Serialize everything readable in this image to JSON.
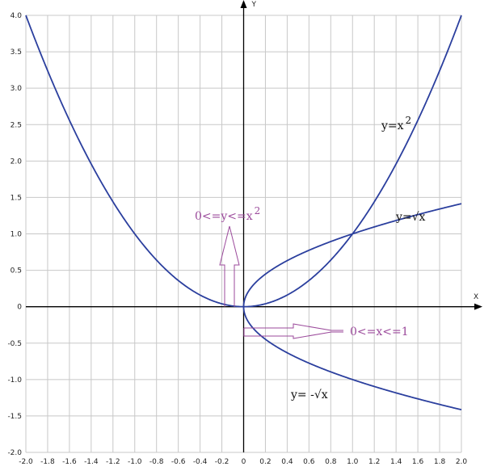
{
  "chart_data": {
    "type": "line",
    "title": "",
    "xlabel": "X",
    "ylabel": "Y",
    "xlim": [
      -2,
      2
    ],
    "ylim": [
      -2,
      4
    ],
    "grid": true,
    "x_ticks": [
      "-2.0",
      "-1.8",
      "-1.6",
      "-1.4",
      "-1.2",
      "-1.0",
      "-0.8",
      "-0.6",
      "-0.4",
      "-0.2",
      "0",
      "0.2",
      "0.4",
      "0.6",
      "0.8",
      "1.0",
      "1.2",
      "1.4",
      "1.6",
      "1.8",
      "2.0"
    ],
    "y_ticks": [
      "-2.0",
      "-1.5",
      "-1.0",
      "-0.5",
      "0",
      "0.5",
      "1.0",
      "1.5",
      "2.0",
      "2.5",
      "3.0",
      "3.5",
      "4.0"
    ],
    "series": [
      {
        "name": "y=x^2",
        "label": "y=x",
        "label_sup": "2",
        "function": "x^2",
        "domain": [
          -2,
          2
        ],
        "color": "#2b3f9e"
      },
      {
        "name": "y=sqrt(x)",
        "label": "y=√x",
        "function": "sqrt(x)",
        "domain": [
          0,
          2
        ],
        "color": "#2b3f9e"
      },
      {
        "name": "y=-sqrt(x)",
        "label": "y= -√x",
        "function": "-sqrt(x)",
        "domain": [
          0,
          2
        ],
        "color": "#2b3f9e"
      }
    ],
    "annotations": [
      {
        "text": "0<=y<=x",
        "sup": "2",
        "type": "up-arrow",
        "color": "#9b4a9b"
      },
      {
        "text": "0<=x<=1",
        "type": "right-arrow",
        "color": "#9b4a9b"
      }
    ]
  }
}
